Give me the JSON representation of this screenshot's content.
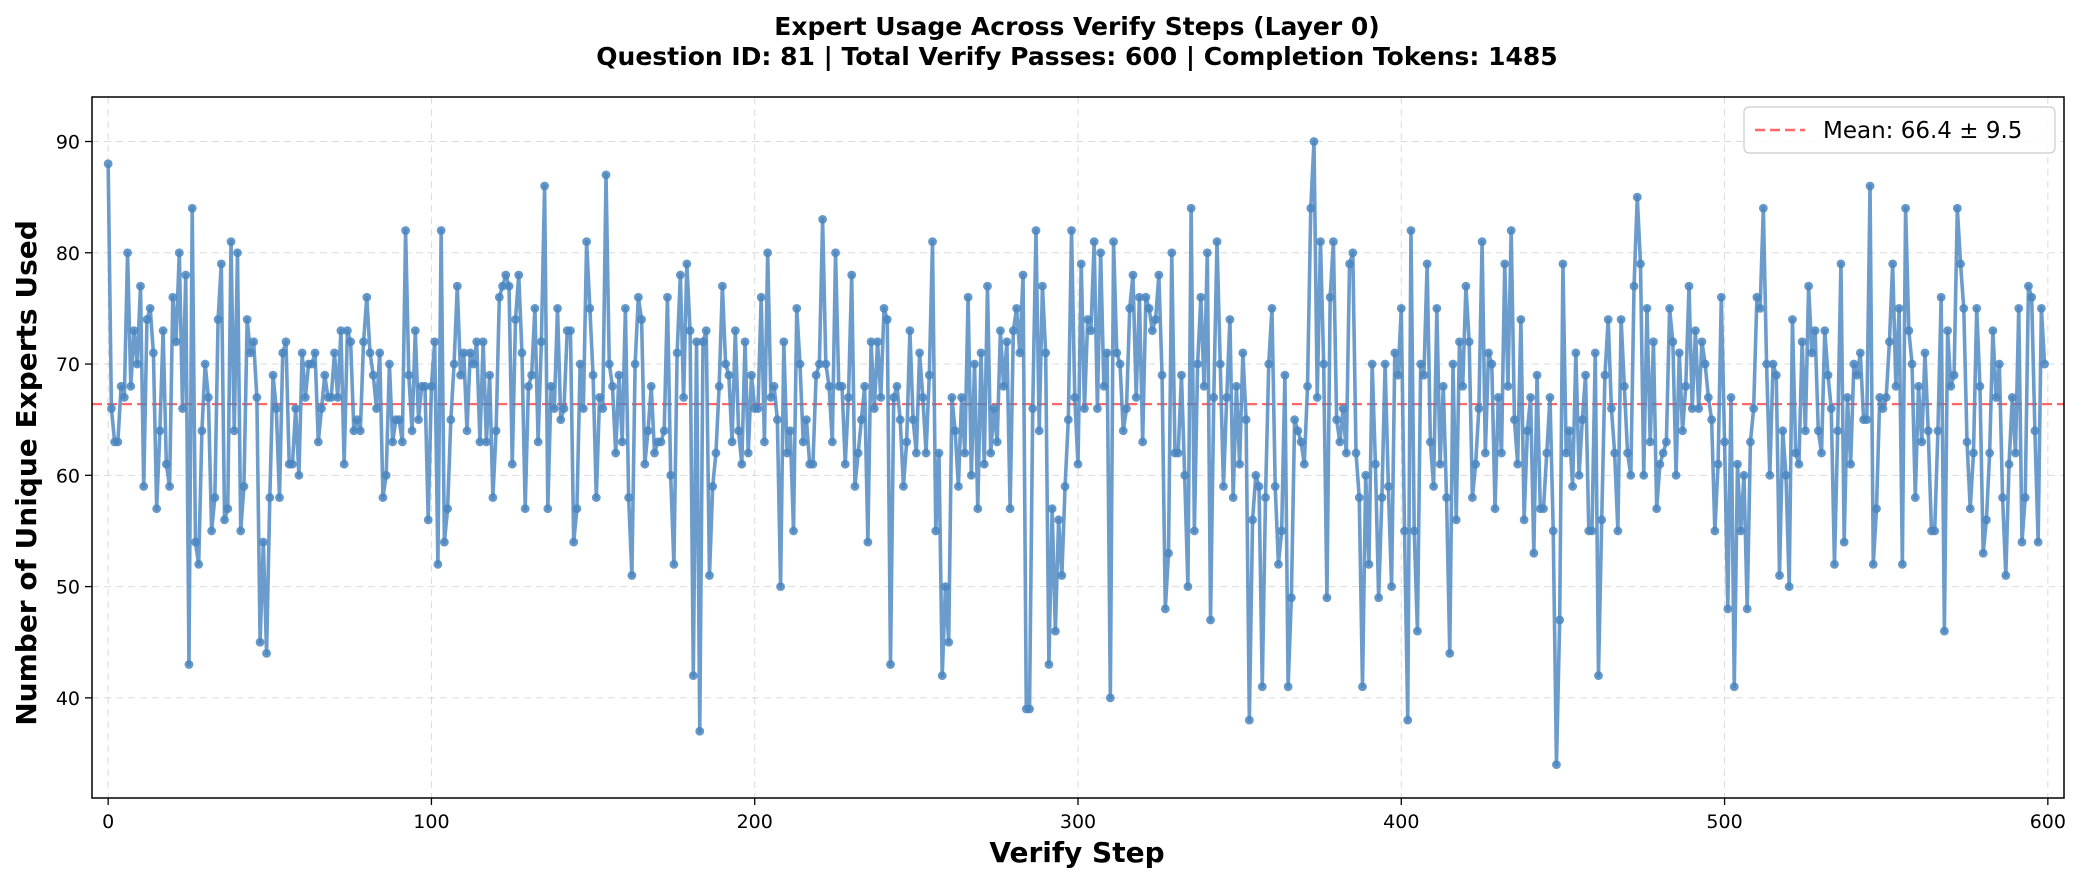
{
  "chart_data": {
    "type": "line",
    "title": "Expert Usage Across Verify Steps (Layer 0)",
    "subtitle": "Question ID: 81 | Total Verify Passes: 600 | Completion Tokens: 1485",
    "xlabel": "Verify Step",
    "ylabel": "Number of Unique Experts Used",
    "xlim": [
      -5,
      605
    ],
    "ylim": [
      31,
      94
    ],
    "xticks": [
      0,
      100,
      200,
      300,
      400,
      500,
      600
    ],
    "yticks": [
      40,
      50,
      60,
      70,
      80,
      90
    ],
    "grid": true,
    "legend_position": "top-right",
    "series": [
      {
        "name": "",
        "color": "#4a86c0",
        "values": [
          88,
          66,
          63,
          63,
          68,
          67,
          80,
          68,
          73,
          70,
          77,
          59,
          74,
          75,
          71,
          57,
          64,
          73,
          61,
          59,
          76,
          72,
          80,
          66,
          78,
          43,
          84,
          54,
          52,
          64,
          70,
          67,
          55,
          58,
          74,
          79,
          56,
          57,
          81,
          64,
          80,
          55,
          59,
          74,
          71,
          72,
          67,
          45,
          54,
          44,
          58,
          69,
          66,
          58,
          71,
          72,
          61,
          61,
          66,
          60,
          71,
          67,
          70,
          70,
          71,
          63,
          66,
          69,
          67,
          67,
          71,
          67,
          73,
          61,
          73,
          72,
          64,
          65,
          64,
          72,
          76,
          71,
          69,
          66,
          71,
          58,
          60,
          70,
          63,
          65,
          65,
          63,
          82,
          69,
          64,
          73,
          65,
          68,
          68,
          56,
          68,
          72,
          52,
          82,
          54,
          57,
          65,
          70,
          77,
          69,
          71,
          64,
          71,
          70,
          72,
          63,
          72,
          63,
          69,
          58,
          64,
          76,
          77,
          78,
          77,
          61,
          74,
          78,
          71,
          57,
          68,
          69,
          75,
          63,
          72,
          86,
          57,
          68,
          66,
          75,
          65,
          66,
          73,
          73,
          54,
          57,
          70,
          66,
          81,
          75,
          69,
          58,
          67,
          66,
          87,
          70,
          68,
          62,
          69,
          63,
          75,
          58,
          51,
          70,
          76,
          74,
          61,
          64,
          68,
          62,
          63,
          63,
          64,
          76,
          60,
          52,
          71,
          78,
          67,
          79,
          73,
          42,
          72,
          37,
          72,
          73,
          51,
          59,
          62,
          68,
          77,
          70,
          69,
          63,
          73,
          64,
          61,
          72,
          62,
          69,
          66,
          66,
          76,
          63,
          80,
          67,
          68,
          65,
          50,
          72,
          62,
          64,
          55,
          75,
          70,
          63,
          65,
          61,
          61,
          69,
          70,
          83,
          70,
          68,
          63,
          80,
          68,
          68,
          61,
          67,
          78,
          59,
          62,
          65,
          68,
          54,
          72,
          66,
          72,
          67,
          75,
          74,
          43,
          67,
          68,
          65,
          59,
          63,
          73,
          65,
          62,
          71,
          67,
          62,
          69,
          81,
          55,
          62,
          42,
          50,
          45,
          67,
          64,
          59,
          67,
          62,
          76,
          60,
          70,
          57,
          71,
          61,
          77,
          62,
          66,
          63,
          73,
          68,
          72,
          57,
          73,
          75,
          71,
          78,
          39,
          39,
          66,
          82,
          64,
          77,
          71,
          43,
          57,
          46,
          56,
          51,
          59,
          65,
          82,
          67,
          61,
          79,
          66,
          74,
          73,
          81,
          66,
          80,
          68,
          71,
          40,
          81,
          71,
          70,
          64,
          66,
          75,
          78,
          67,
          76,
          63,
          76,
          75,
          73,
          74,
          78,
          69,
          48,
          53,
          80,
          62,
          62,
          69,
          60,
          50,
          84,
          55,
          70,
          76,
          68,
          80,
          47,
          67,
          81,
          70,
          59,
          67,
          74,
          58,
          68,
          61,
          71,
          65,
          38,
          56,
          60,
          59,
          41,
          58,
          70,
          75,
          59,
          52,
          55,
          69,
          41,
          49,
          65,
          64,
          63,
          61,
          68,
          84,
          90,
          67,
          81,
          70,
          49,
          76,
          81,
          65,
          63,
          66,
          62,
          79,
          80,
          62,
          58,
          41,
          60,
          52,
          70,
          61,
          49,
          58,
          70,
          59,
          50,
          71,
          69,
          75,
          55,
          38,
          82,
          55,
          46,
          70,
          69,
          79,
          63,
          59,
          75,
          61,
          68,
          58,
          44,
          70,
          56,
          72,
          68,
          77,
          72,
          58,
          61,
          66,
          81,
          62,
          71,
          70,
          57,
          67,
          62,
          79,
          68,
          82,
          65,
          61,
          74,
          56,
          64,
          67,
          53,
          69,
          57,
          57,
          62,
          67,
          55,
          34,
          47,
          79,
          62,
          64,
          59,
          71,
          60,
          65,
          69,
          55,
          55,
          71,
          42,
          56,
          69,
          74,
          66,
          62,
          55,
          74,
          68,
          62,
          60,
          77,
          85,
          79,
          60,
          75,
          63,
          72,
          57,
          61,
          62,
          63,
          75,
          72,
          60,
          71,
          64,
          68,
          77,
          66,
          73,
          66,
          72,
          70,
          67,
          65,
          55,
          61,
          76,
          63,
          48,
          67,
          41,
          61,
          55,
          60,
          48,
          63,
          66,
          76,
          75,
          84,
          70,
          60,
          70,
          69,
          51,
          64,
          60,
          50,
          74,
          62,
          61,
          72,
          64,
          77,
          71,
          73,
          64,
          62,
          73,
          69,
          66,
          52,
          64,
          79,
          54,
          67,
          61,
          70,
          69,
          71,
          65,
          65,
          86,
          52,
          57,
          67,
          66,
          67,
          72,
          79,
          68,
          75,
          52,
          84,
          73,
          70,
          58,
          68,
          63,
          71,
          64,
          55,
          55,
          64,
          76,
          46,
          73,
          68,
          69,
          84,
          79,
          75,
          63,
          57,
          62,
          75,
          68,
          53,
          56,
          62,
          73,
          67,
          70,
          58,
          51,
          61,
          67,
          62,
          75,
          54,
          58,
          77,
          76,
          64,
          54,
          75,
          70
        ]
      }
    ],
    "mean_line": {
      "value": 66.4,
      "label": "Mean: 66.4 ± 9.5",
      "color": "#ff4d4d"
    }
  }
}
